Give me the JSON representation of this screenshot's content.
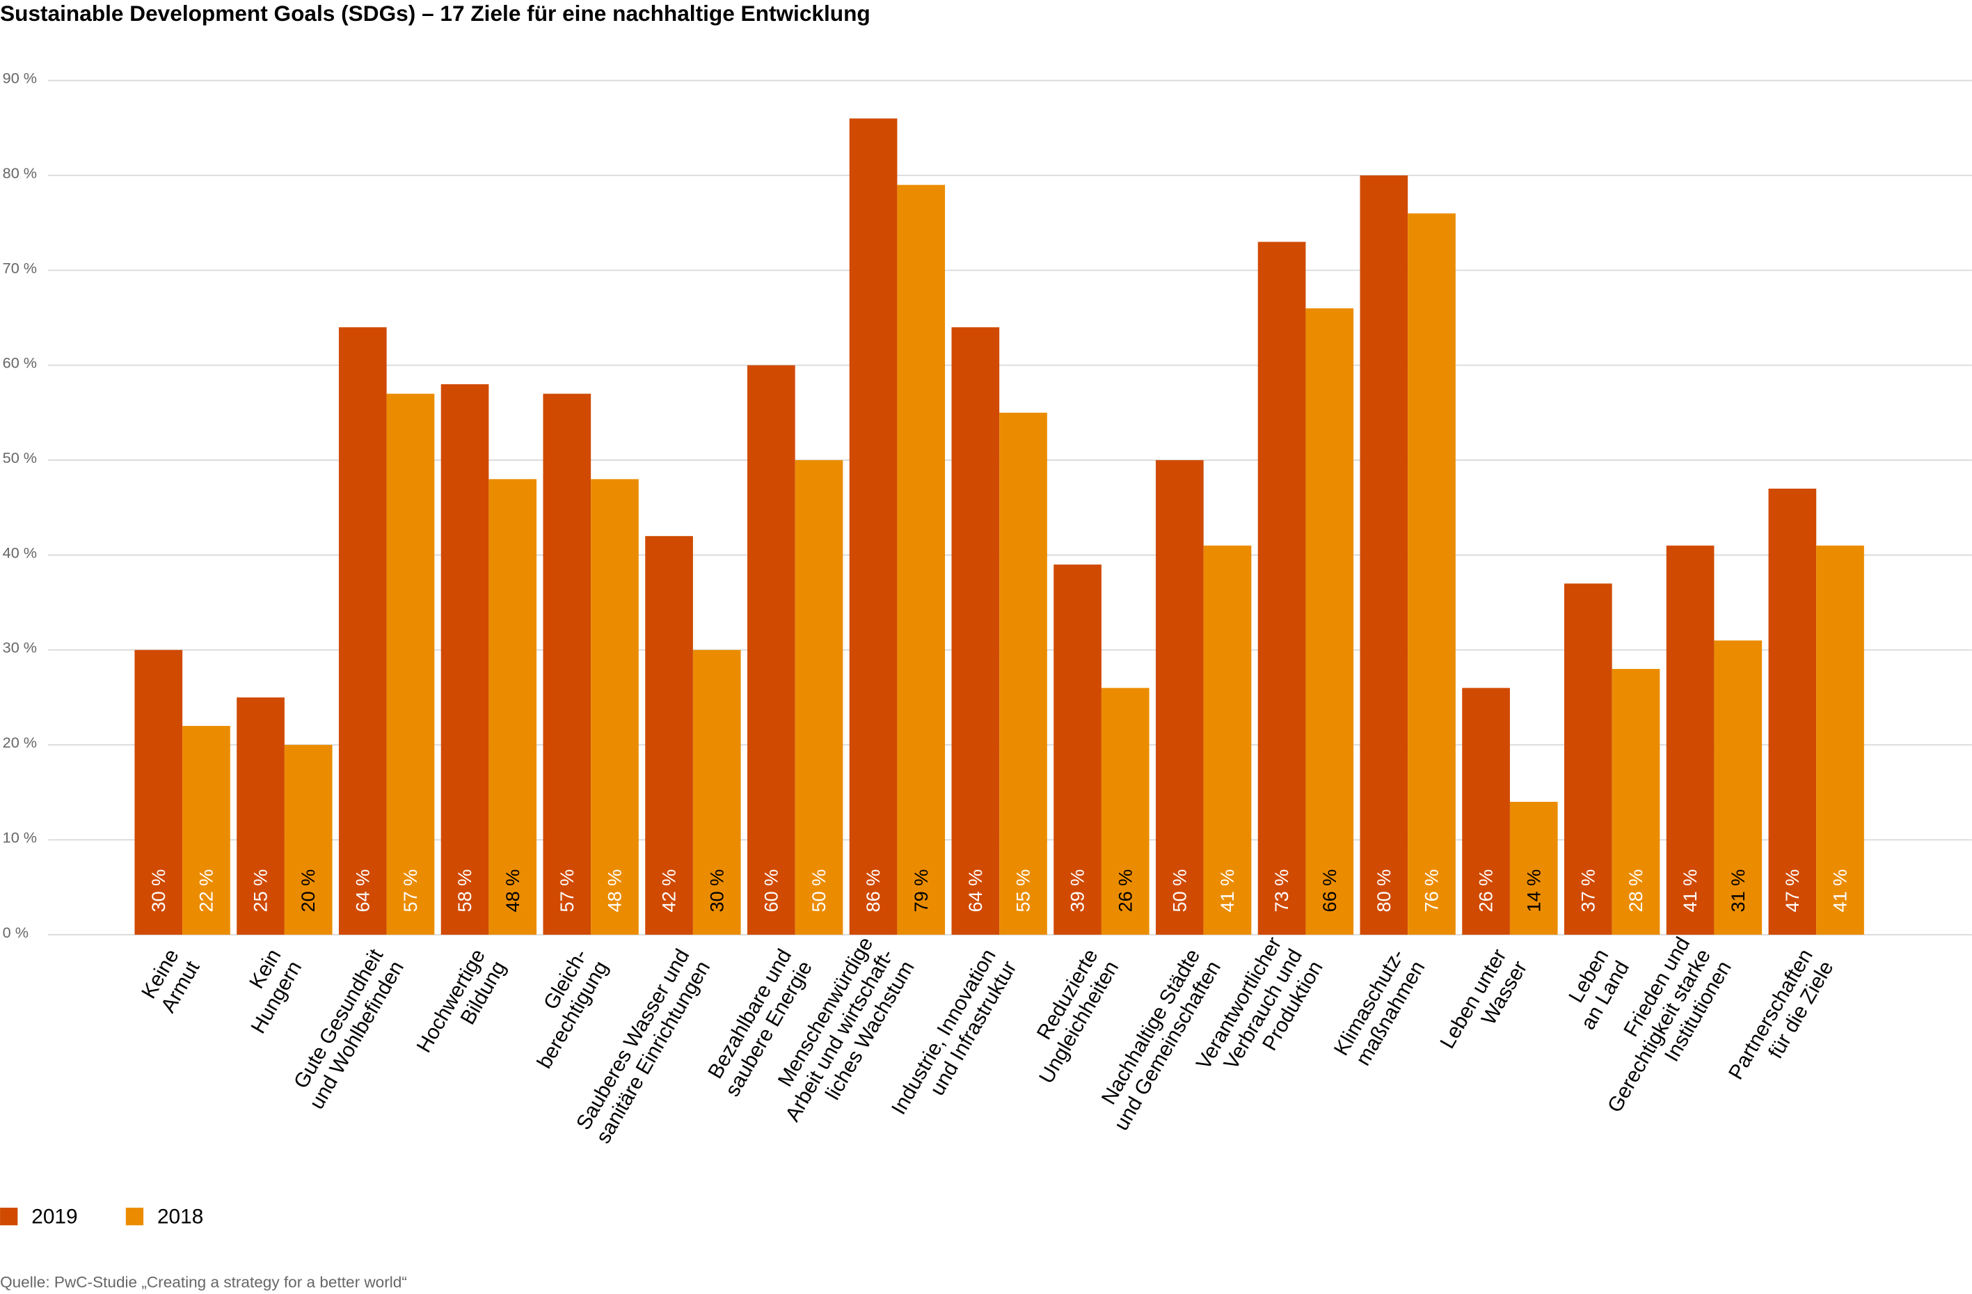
{
  "chart_data": {
    "type": "bar",
    "title": "Sustainable Development Goals (SDGs) – 17 Ziele für eine nachhaltige Entwicklung",
    "categories": [
      "Keine\nArmut",
      "Kein\nHungern",
      "Gute Gesundheit\nund Wohlbefinden",
      "Hochwertige\nBildung",
      "Gleich-\nberechtigung",
      "Sauberes Wasser und\nsanitäre Einrichtungen",
      "Bezahlbare und\nsaubere Energie",
      "Menschenwürdige\nArbeit und wirtschaft-\nliches Wachstum",
      "Industrie, Innovation\nund Infrastruktur",
      "Reduzierte\nUngleichheiten",
      "Nachhaltige Städte\nund Gemeinschaften",
      "Verantwortlicher\nVerbrauch und\nProduktion",
      "Klimaschutz-\nmaßnahmen",
      "Leben unter\nWasser",
      "Leben\nan Land",
      "Frieden und\nGerechtigkeit starke\nInstitutionen",
      "Partnerschaften\nfür die Ziele"
    ],
    "series": [
      {
        "name": "2019",
        "color": "#d04a02",
        "values": [
          30,
          25,
          64,
          58,
          57,
          42,
          60,
          86,
          64,
          39,
          50,
          73,
          80,
          26,
          37,
          41,
          47
        ],
        "value_labels": [
          "30 %",
          "25 %",
          "64 %",
          "58 %",
          "57 %",
          "42 %",
          "60 %",
          "86 %",
          "64 %",
          "39 %",
          "50 %",
          "73 %",
          "80 %",
          "26 %",
          "37 %",
          "41 %",
          "47 %"
        ]
      },
      {
        "name": "2018",
        "color": "#eb8c00",
        "values": [
          22,
          20,
          57,
          48,
          48,
          30,
          50,
          79,
          55,
          26,
          41,
          66,
          76,
          14,
          28,
          31,
          41
        ],
        "value_labels": [
          "22 %",
          "20 %",
          "57 %",
          "48 %",
          "48 %",
          "30 %",
          "50 %",
          "79 %",
          "55 %",
          "26 %",
          "41 %",
          "66 %",
          "76 %",
          "14 %",
          "28 %",
          "31 %",
          "41 %"
        ]
      }
    ],
    "ylim": [
      0,
      90
    ],
    "yticks": [
      {
        "value": 0,
        "label": "0 %"
      },
      {
        "value": 10,
        "label": "10 %"
      },
      {
        "value": 20,
        "label": "20 %"
      },
      {
        "value": 30,
        "label": "30 %"
      },
      {
        "value": 40,
        "label": "40 %"
      },
      {
        "value": 50,
        "label": "50 %"
      },
      {
        "value": 60,
        "label": "60 %"
      },
      {
        "value": 70,
        "label": "70 %"
      },
      {
        "value": 80,
        "label": "80 %"
      },
      {
        "value": 90,
        "label": "90 %"
      }
    ],
    "grid": true,
    "source": "Quelle: PwC-Studie „Creating a strategy for a better world“"
  }
}
